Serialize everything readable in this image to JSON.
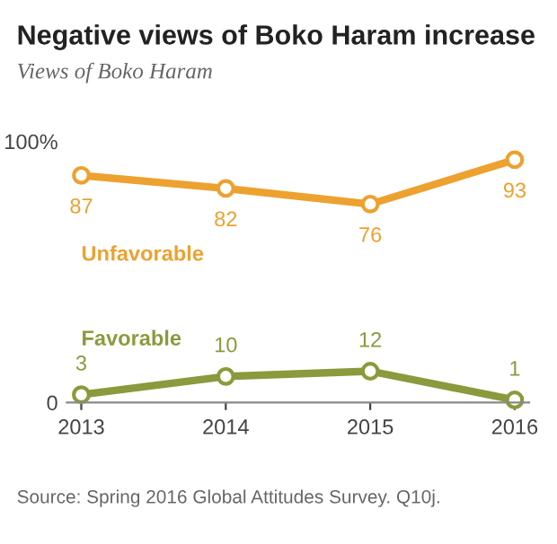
{
  "chart_data": {
    "type": "line",
    "title": "Negative views of Boko Haram increase",
    "subtitle": "Views of Boko Haram",
    "categories": [
      "2013",
      "2014",
      "2015",
      "2016"
    ],
    "series": [
      {
        "name": "Unfavorable",
        "color": "#eda12f",
        "values": [
          87,
          82,
          76,
          93
        ]
      },
      {
        "name": "Favorable",
        "color": "#8a9a3c",
        "values": [
          3,
          10,
          12,
          1
        ]
      }
    ],
    "ylim": [
      0,
      100
    ],
    "yticks": [
      {
        "value": 0,
        "label": "0"
      },
      {
        "value": 100,
        "label": "100%"
      }
    ],
    "data_labels": true,
    "marker": "circle",
    "line_style": "solid",
    "grid": false,
    "legend": false,
    "annotations": [
      "Source: Spring 2016 Global Attitudes Survey. Q10j."
    ]
  }
}
